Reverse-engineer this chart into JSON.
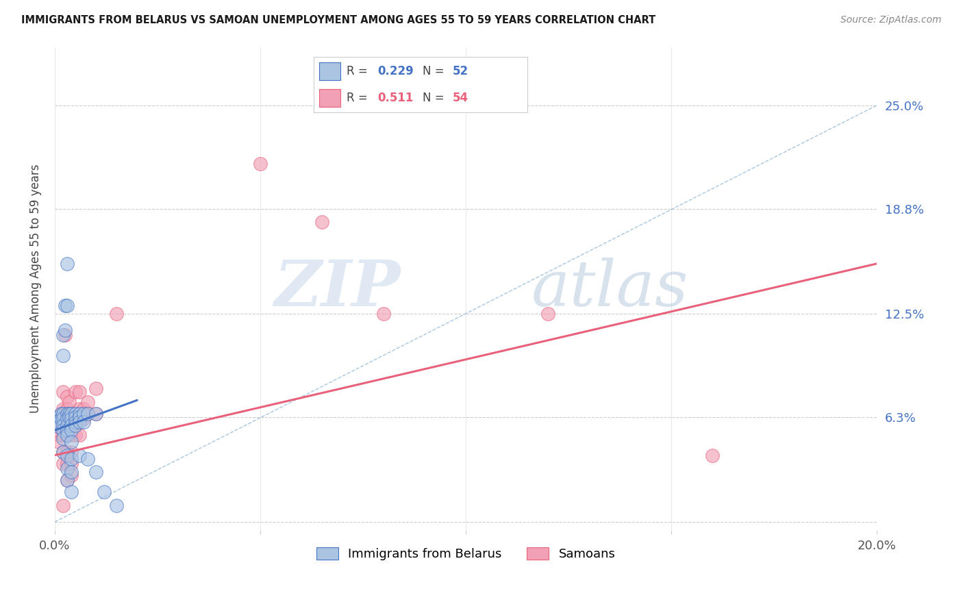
{
  "title": "IMMIGRANTS FROM BELARUS VS SAMOAN UNEMPLOYMENT AMONG AGES 55 TO 59 YEARS CORRELATION CHART",
  "source": "Source: ZipAtlas.com",
  "ylabel": "Unemployment Among Ages 55 to 59 years",
  "xlim": [
    0.0,
    0.2
  ],
  "ylim": [
    -0.005,
    0.285
  ],
  "yticks": [
    0.0,
    0.063,
    0.125,
    0.188,
    0.25
  ],
  "ytick_labels": [
    "",
    "6.3%",
    "12.5%",
    "18.8%",
    "25.0%"
  ],
  "xticks": [
    0.0,
    0.05,
    0.1,
    0.15,
    0.2
  ],
  "xtick_labels": [
    "0.0%",
    "",
    "",
    "",
    "20.0%"
  ],
  "r_belarus": 0.229,
  "n_belarus": 52,
  "r_samoan": 0.511,
  "n_samoan": 54,
  "color_belarus": "#aac4e2",
  "color_samoan": "#f2a0b5",
  "line_color_belarus": "#4472c4",
  "line_color_samoan": "#e8607a",
  "line_color_dashed": "#90b8d8",
  "watermark_zip": "ZIP",
  "watermark_atlas": "atlas",
  "scatter_belarus": [
    [
      0.0005,
      0.063
    ],
    [
      0.001,
      0.063
    ],
    [
      0.001,
      0.06
    ],
    [
      0.001,
      0.057
    ],
    [
      0.0015,
      0.065
    ],
    [
      0.0015,
      0.062
    ],
    [
      0.002,
      0.112
    ],
    [
      0.002,
      0.1
    ],
    [
      0.002,
      0.065
    ],
    [
      0.002,
      0.062
    ],
    [
      0.002,
      0.058
    ],
    [
      0.002,
      0.055
    ],
    [
      0.002,
      0.05
    ],
    [
      0.002,
      0.042
    ],
    [
      0.0025,
      0.13
    ],
    [
      0.0025,
      0.115
    ],
    [
      0.003,
      0.13
    ],
    [
      0.003,
      0.155
    ],
    [
      0.003,
      0.065
    ],
    [
      0.003,
      0.062
    ],
    [
      0.003,
      0.058
    ],
    [
      0.003,
      0.055
    ],
    [
      0.003,
      0.052
    ],
    [
      0.003,
      0.04
    ],
    [
      0.003,
      0.032
    ],
    [
      0.003,
      0.025
    ],
    [
      0.0035,
      0.065
    ],
    [
      0.0035,
      0.063
    ],
    [
      0.004,
      0.065
    ],
    [
      0.004,
      0.062
    ],
    [
      0.004,
      0.058
    ],
    [
      0.004,
      0.055
    ],
    [
      0.004,
      0.048
    ],
    [
      0.004,
      0.038
    ],
    [
      0.004,
      0.03
    ],
    [
      0.004,
      0.018
    ],
    [
      0.005,
      0.065
    ],
    [
      0.005,
      0.063
    ],
    [
      0.005,
      0.06
    ],
    [
      0.005,
      0.058
    ],
    [
      0.006,
      0.065
    ],
    [
      0.006,
      0.063
    ],
    [
      0.006,
      0.06
    ],
    [
      0.006,
      0.04
    ],
    [
      0.007,
      0.065
    ],
    [
      0.007,
      0.06
    ],
    [
      0.008,
      0.065
    ],
    [
      0.008,
      0.038
    ],
    [
      0.01,
      0.065
    ],
    [
      0.01,
      0.03
    ],
    [
      0.012,
      0.018
    ],
    [
      0.015,
      0.01
    ]
  ],
  "scatter_samoan": [
    [
      0.0005,
      0.058
    ],
    [
      0.001,
      0.062
    ],
    [
      0.001,
      0.058
    ],
    [
      0.001,
      0.052
    ],
    [
      0.001,
      0.048
    ],
    [
      0.0015,
      0.065
    ],
    [
      0.0015,
      0.062
    ],
    [
      0.0015,
      0.058
    ],
    [
      0.002,
      0.078
    ],
    [
      0.002,
      0.068
    ],
    [
      0.002,
      0.065
    ],
    [
      0.002,
      0.058
    ],
    [
      0.002,
      0.052
    ],
    [
      0.002,
      0.042
    ],
    [
      0.002,
      0.035
    ],
    [
      0.002,
      0.01
    ],
    [
      0.0025,
      0.112
    ],
    [
      0.0025,
      0.065
    ],
    [
      0.003,
      0.075
    ],
    [
      0.003,
      0.068
    ],
    [
      0.003,
      0.065
    ],
    [
      0.003,
      0.058
    ],
    [
      0.003,
      0.052
    ],
    [
      0.003,
      0.042
    ],
    [
      0.003,
      0.035
    ],
    [
      0.003,
      0.025
    ],
    [
      0.0035,
      0.072
    ],
    [
      0.0035,
      0.065
    ],
    [
      0.004,
      0.065
    ],
    [
      0.004,
      0.058
    ],
    [
      0.004,
      0.052
    ],
    [
      0.004,
      0.042
    ],
    [
      0.004,
      0.035
    ],
    [
      0.004,
      0.028
    ],
    [
      0.005,
      0.078
    ],
    [
      0.005,
      0.065
    ],
    [
      0.005,
      0.058
    ],
    [
      0.005,
      0.052
    ],
    [
      0.006,
      0.078
    ],
    [
      0.006,
      0.068
    ],
    [
      0.006,
      0.062
    ],
    [
      0.006,
      0.052
    ],
    [
      0.007,
      0.068
    ],
    [
      0.007,
      0.062
    ],
    [
      0.008,
      0.072
    ],
    [
      0.008,
      0.065
    ],
    [
      0.01,
      0.08
    ],
    [
      0.01,
      0.065
    ],
    [
      0.015,
      0.125
    ],
    [
      0.05,
      0.215
    ],
    [
      0.065,
      0.18
    ],
    [
      0.08,
      0.125
    ],
    [
      0.12,
      0.125
    ],
    [
      0.16,
      0.04
    ]
  ],
  "trendline_belarus": {
    "x": [
      0.0,
      0.02
    ],
    "y": [
      0.055,
      0.073
    ]
  },
  "trendline_samoan": {
    "x": [
      0.0,
      0.2
    ],
    "y": [
      0.04,
      0.155
    ]
  },
  "dashed_line": {
    "x": [
      0.0,
      0.2
    ],
    "y": [
      0.0,
      0.25
    ]
  }
}
